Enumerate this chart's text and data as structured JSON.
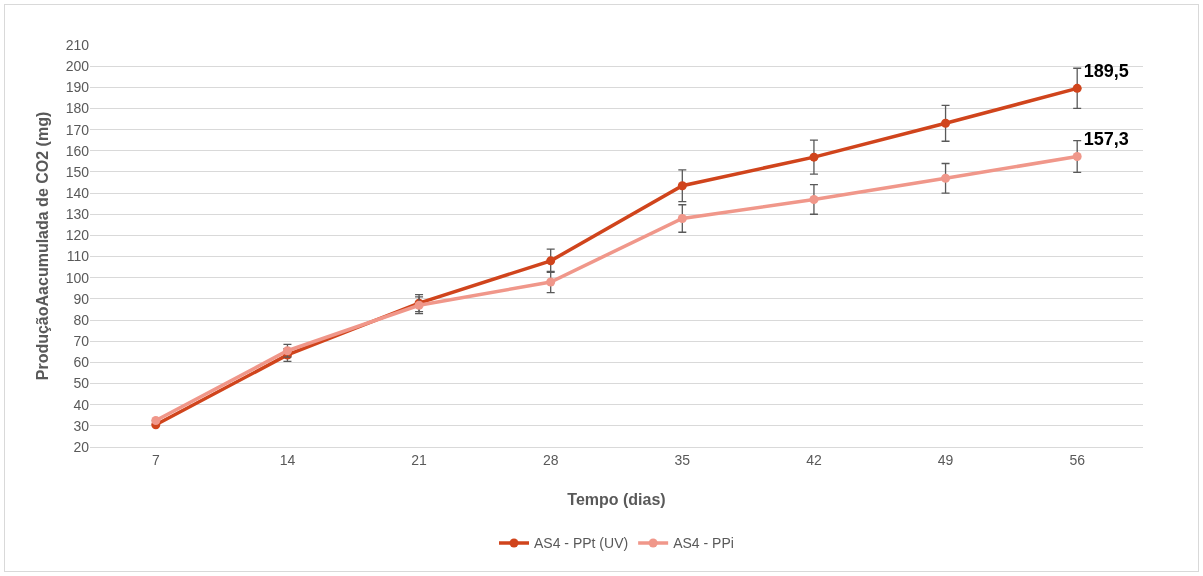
{
  "chart_data": {
    "type": "line",
    "xlabel": "Tempo (dias)",
    "ylabel": "ProduçãoAacumulada de CO2 (mg)",
    "categories": [
      "7",
      "14",
      "21",
      "28",
      "35",
      "42",
      "49",
      "56"
    ],
    "series": [
      {
        "name": "AS4 - PPt (UV)",
        "color": "#d0441c",
        "values": [
          30.5,
          63.5,
          88,
          108,
          143.5,
          157,
          173,
          189.5
        ],
        "errors": [
          null,
          3,
          4,
          5.5,
          7.5,
          8,
          8.5,
          9.5
        ],
        "value_labels": [
          null,
          null,
          null,
          null,
          null,
          null,
          null,
          "189,5"
        ]
      },
      {
        "name": "AS4 - PPi",
        "color": "#f0978a",
        "values": [
          32.5,
          65.5,
          87,
          98,
          128,
          137,
          147,
          157.3
        ],
        "errors": [
          null,
          3,
          4,
          5,
          6.5,
          7,
          7,
          7.5
        ],
        "value_labels": [
          null,
          null,
          null,
          null,
          null,
          null,
          null,
          "157,3"
        ]
      }
    ],
    "ylim": [
      20,
      210
    ],
    "yticks": [
      20,
      30,
      40,
      50,
      60,
      70,
      80,
      90,
      100,
      110,
      120,
      130,
      140,
      150,
      160,
      170,
      180,
      190,
      200,
      210
    ],
    "grid": "y",
    "legend": "bottom",
    "marker": "circle",
    "line_style": "solid"
  }
}
